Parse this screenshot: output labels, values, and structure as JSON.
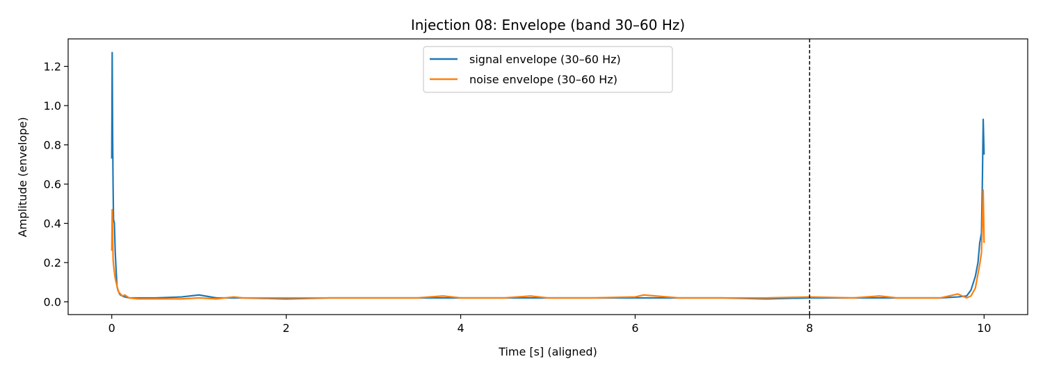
{
  "chart_data": {
    "type": "line",
    "title": "Injection 08: Envelope (band 30–60 Hz)",
    "xlabel": "Time [s] (aligned)",
    "ylabel": "Amplitude (envelope)",
    "xlim": [
      -0.5,
      10.5
    ],
    "ylim": [
      -0.065,
      1.34
    ],
    "xticks": [
      0,
      2,
      4,
      6,
      8,
      10
    ],
    "xtick_labels": [
      "0",
      "2",
      "4",
      "6",
      "8",
      "10"
    ],
    "yticks": [
      0.0,
      0.2,
      0.4,
      0.6,
      0.8,
      1.0,
      1.2
    ],
    "ytick_labels": [
      "0.0",
      "0.2",
      "0.4",
      "0.6",
      "0.8",
      "1.0",
      "1.2"
    ],
    "grid": false,
    "legend_position": "upper-center",
    "vline": {
      "x": 8,
      "style": "dashed",
      "color": "#000000"
    },
    "series": [
      {
        "name": "signal envelope (30–60 Hz)",
        "color": "#1f77b4",
        "x": [
          0.0,
          0.005,
          0.01,
          0.015,
          0.02,
          0.03,
          0.04,
          0.05,
          0.06,
          0.07,
          0.08,
          0.09,
          0.1,
          0.12,
          0.15,
          0.2,
          0.3,
          0.5,
          0.8,
          1.0,
          1.2,
          1.5,
          2.0,
          2.5,
          3.0,
          3.5,
          4.0,
          4.5,
          5.0,
          5.5,
          6.0,
          6.5,
          7.0,
          7.5,
          8.0,
          8.5,
          9.0,
          9.5,
          9.7,
          9.8,
          9.85,
          9.9,
          9.93,
          9.95,
          9.97,
          9.98,
          9.99,
          10.0
        ],
        "values": [
          0.73,
          1.27,
          0.85,
          0.6,
          0.42,
          0.4,
          0.25,
          0.16,
          0.08,
          0.06,
          0.05,
          0.04,
          0.035,
          0.03,
          0.025,
          0.02,
          0.02,
          0.02,
          0.025,
          0.035,
          0.02,
          0.02,
          0.015,
          0.02,
          0.02,
          0.02,
          0.02,
          0.02,
          0.02,
          0.02,
          0.02,
          0.02,
          0.02,
          0.015,
          0.02,
          0.02,
          0.02,
          0.02,
          0.025,
          0.03,
          0.06,
          0.13,
          0.2,
          0.3,
          0.35,
          0.6,
          0.93,
          0.75
        ]
      },
      {
        "name": "noise envelope (30–60 Hz)",
        "color": "#ff7f0e",
        "x": [
          0.0,
          0.005,
          0.01,
          0.015,
          0.02,
          0.03,
          0.04,
          0.06,
          0.08,
          0.1,
          0.12,
          0.15,
          0.2,
          0.3,
          0.5,
          0.8,
          1.0,
          1.2,
          1.4,
          1.5,
          2.0,
          2.5,
          3.0,
          3.5,
          3.8,
          4.0,
          4.5,
          4.8,
          5.0,
          5.5,
          6.0,
          6.1,
          6.5,
          7.0,
          7.5,
          8.0,
          8.5,
          8.8,
          9.0,
          9.5,
          9.7,
          9.8,
          9.85,
          9.9,
          9.95,
          9.97,
          9.98,
          9.99,
          10.0
        ],
        "values": [
          0.26,
          0.47,
          0.35,
          0.22,
          0.19,
          0.15,
          0.12,
          0.08,
          0.05,
          0.04,
          0.03,
          0.035,
          0.02,
          0.015,
          0.015,
          0.015,
          0.02,
          0.015,
          0.025,
          0.02,
          0.02,
          0.02,
          0.02,
          0.02,
          0.03,
          0.02,
          0.02,
          0.03,
          0.02,
          0.02,
          0.025,
          0.035,
          0.02,
          0.02,
          0.02,
          0.025,
          0.02,
          0.03,
          0.02,
          0.02,
          0.04,
          0.02,
          0.03,
          0.07,
          0.19,
          0.25,
          0.4,
          0.57,
          0.3
        ]
      }
    ]
  }
}
